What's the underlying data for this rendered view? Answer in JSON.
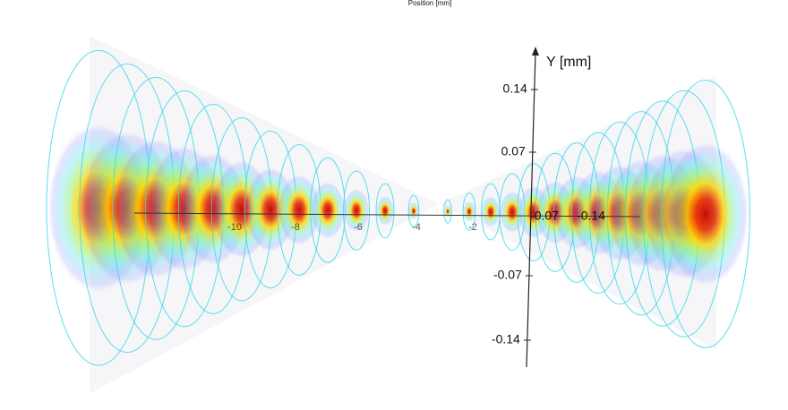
{
  "title": "Position [mm]",
  "y_axis": {
    "label": "Y [mm]",
    "ticks": [
      "0.14",
      "0.07",
      "-0.07",
      "-0.14"
    ]
  },
  "z_axis": {
    "ticks": [
      "-0.07",
      "-0.14"
    ]
  },
  "x_axis": {
    "ticks": [
      "-10",
      "-8",
      "-6",
      "-4",
      "-2"
    ]
  }
}
